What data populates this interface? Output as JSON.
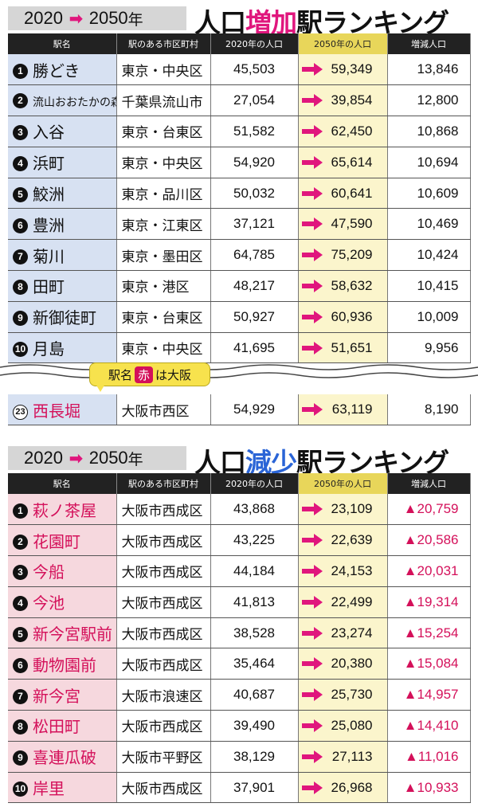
{
  "increase": {
    "year_from": "2020",
    "year_to": "2050",
    "year_suffix": "年",
    "title_pre": "人口",
    "title_hl": "増加",
    "title_post": "駅ランキング",
    "headers": [
      "駅名",
      "駅のある市区町村",
      "2020年の人口",
      "2050年の人口",
      "増減人口"
    ],
    "rows": [
      {
        "rank": "1",
        "name": "勝どき",
        "city": "東京・中央区",
        "p2020": "45,503",
        "p2050": "59,349",
        "change": "13,846"
      },
      {
        "rank": "2",
        "name": "流山おおたかの森",
        "city": "千葉県流山市",
        "p2020": "27,054",
        "p2050": "39,854",
        "change": "12,800"
      },
      {
        "rank": "3",
        "name": "入谷",
        "city": "東京・台東区",
        "p2020": "51,582",
        "p2050": "62,450",
        "change": "10,868"
      },
      {
        "rank": "4",
        "name": "浜町",
        "city": "東京・中央区",
        "p2020": "54,920",
        "p2050": "65,614",
        "change": "10,694"
      },
      {
        "rank": "5",
        "name": "鮫洲",
        "city": "東京・品川区",
        "p2020": "50,032",
        "p2050": "60,641",
        "change": "10,609"
      },
      {
        "rank": "6",
        "name": "豊洲",
        "city": "東京・江東区",
        "p2020": "37,121",
        "p2050": "47,590",
        "change": "10,469"
      },
      {
        "rank": "7",
        "name": "菊川",
        "city": "東京・墨田区",
        "p2020": "64,785",
        "p2050": "75,209",
        "change": "10,424"
      },
      {
        "rank": "8",
        "name": "田町",
        "city": "東京・港区",
        "p2020": "48,217",
        "p2050": "58,632",
        "change": "10,415"
      },
      {
        "rank": "9",
        "name": "新御徒町",
        "city": "東京・台東区",
        "p2020": "50,927",
        "p2050": "60,936",
        "change": "10,009"
      },
      {
        "rank": "10",
        "name": "月島",
        "city": "東京・中央区",
        "p2020": "41,695",
        "p2050": "51,651",
        "change": "9,956"
      }
    ],
    "extra_row": {
      "rank": "23",
      "name": "西長堀",
      "city": "大阪市西区",
      "p2020": "54,929",
      "p2050": "63,119",
      "change": "8,190"
    },
    "callout": {
      "pre": "駅名",
      "mark": "赤",
      "post": "は大阪"
    }
  },
  "decrease": {
    "year_from": "2020",
    "year_to": "2050",
    "year_suffix": "年",
    "title_pre": "人口",
    "title_hl": "減少",
    "title_post": "駅ランキング",
    "headers": [
      "駅名",
      "駅のある市区町村",
      "2020年の人口",
      "2050年の人口",
      "増減人口"
    ],
    "rows": [
      {
        "rank": "1",
        "name": "萩ノ茶屋",
        "city": "大阪市西成区",
        "p2020": "43,868",
        "p2050": "23,109",
        "change": "▲20,759"
      },
      {
        "rank": "2",
        "name": "花園町",
        "city": "大阪市西成区",
        "p2020": "43,225",
        "p2050": "22,639",
        "change": "▲20,586"
      },
      {
        "rank": "3",
        "name": "今船",
        "city": "大阪市西成区",
        "p2020": "44,184",
        "p2050": "24,153",
        "change": "▲20,031"
      },
      {
        "rank": "4",
        "name": "今池",
        "city": "大阪市西成区",
        "p2020": "41,813",
        "p2050": "22,499",
        "change": "▲19,314"
      },
      {
        "rank": "5",
        "name": "新今宮駅前",
        "city": "大阪市西成区",
        "p2020": "38,528",
        "p2050": "23,274",
        "change": "▲15,254"
      },
      {
        "rank": "6",
        "name": "動物園前",
        "city": "大阪市西成区",
        "p2020": "35,464",
        "p2050": "20,380",
        "change": "▲15,084"
      },
      {
        "rank": "7",
        "name": "新今宮",
        "city": "大阪市浪速区",
        "p2020": "40,687",
        "p2050": "25,730",
        "change": "▲14,957"
      },
      {
        "rank": "8",
        "name": "松田町",
        "city": "大阪市西成区",
        "p2020": "39,490",
        "p2050": "25,080",
        "change": "▲14,410"
      },
      {
        "rank": "9",
        "name": "喜連瓜破",
        "city": "大阪市平野区",
        "p2020": "38,129",
        "p2050": "27,113",
        "change": "▲11,016"
      },
      {
        "rank": "10",
        "name": "岸里",
        "city": "大阪市西成区",
        "p2020": "37,901",
        "p2050": "26,968",
        "change": "▲10,933"
      }
    ]
  },
  "colors": {
    "accent_pink": "#e0167d",
    "accent_red": "#d4105a",
    "accent_blue": "#2a64d6",
    "increase_name_bg": "#d7e1f2",
    "decrease_name_bg": "#f6d8de",
    "highlight_col_bg": "#fbf5cc",
    "callout_bg": "#f7e24d"
  },
  "icons": [
    "right-arrow-icon",
    "rank-number-badge-icon",
    "wavy-break-icon"
  ]
}
